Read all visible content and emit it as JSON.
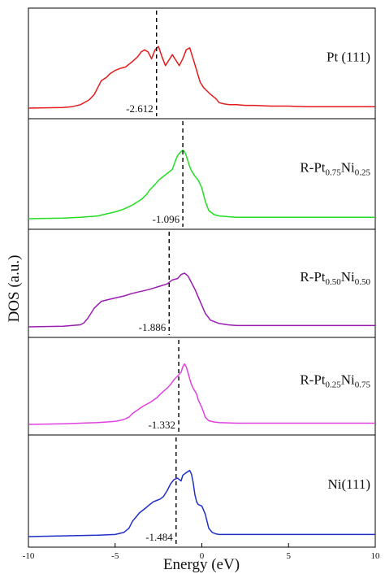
{
  "chart_data": {
    "type": "line",
    "xlabel": "Energy (eV)",
    "ylabel": "DOS (a.u.)",
    "xlim": [
      -10,
      10
    ],
    "x_ticks": [
      "-10",
      "-5",
      "0",
      "5",
      "10"
    ],
    "grid": false,
    "legend": "none",
    "panels": [
      {
        "label_main": "Pt (111)",
        "label_parts": [
          {
            "t": "Pt (111)",
            "sub": false
          }
        ],
        "color": "#e41a1c",
        "d_band_center": -2.612,
        "d_band_label": "-2.612",
        "x": [
          -10,
          -8,
          -7.5,
          -7,
          -6.5,
          -6.2,
          -6.0,
          -5.8,
          -5.5,
          -5.3,
          -5.0,
          -4.7,
          -4.4,
          -4.0,
          -3.7,
          -3.5,
          -3.3,
          -3.1,
          -2.9,
          -2.7,
          -2.5,
          -2.3,
          -2.1,
          -1.9,
          -1.7,
          -1.5,
          -1.3,
          -1.1,
          -0.9,
          -0.7,
          -0.5,
          -0.3,
          -0.1,
          0.1,
          0.3,
          0.5,
          0.8,
          1.0,
          1.3,
          1.6,
          2.0,
          2.5,
          3.0,
          4.0,
          5.0,
          6.0,
          7.0,
          8.0,
          9.0,
          10.0
        ],
        "y": [
          0,
          0.01,
          0.02,
          0.05,
          0.12,
          0.2,
          0.3,
          0.4,
          0.45,
          0.5,
          0.55,
          0.58,
          0.6,
          0.68,
          0.75,
          0.82,
          0.85,
          0.82,
          0.72,
          0.85,
          0.9,
          0.75,
          0.62,
          0.7,
          0.78,
          0.7,
          0.62,
          0.72,
          0.85,
          0.88,
          0.72,
          0.55,
          0.38,
          0.3,
          0.25,
          0.2,
          0.14,
          0.08,
          0.06,
          0.05,
          0.05,
          0.04,
          0.04,
          0.03,
          0.03,
          0.02,
          0.02,
          0.02,
          0.02,
          0.02
        ]
      },
      {
        "label_main": "R-Pt0.75Ni0.25",
        "label_parts": [
          {
            "t": "R-Pt",
            "sub": false
          },
          {
            "t": "0.75",
            "sub": true
          },
          {
            "t": "Ni",
            "sub": false
          },
          {
            "t": "0.25",
            "sub": true
          }
        ],
        "color": "#22dd22",
        "d_band_center": -1.096,
        "d_band_label": "-1.096",
        "x": [
          -10,
          -8,
          -7,
          -6,
          -5.5,
          -5,
          -4.5,
          -4,
          -3.5,
          -3.2,
          -3.0,
          -2.7,
          -2.5,
          -2.3,
          -2.1,
          -1.9,
          -1.7,
          -1.5,
          -1.4,
          -1.3,
          -1.2,
          -1.1,
          -1.0,
          -0.9,
          -0.8,
          -0.7,
          -0.6,
          -0.5,
          -0.4,
          -0.2,
          0,
          0.2,
          0.4,
          0.7,
          1.0,
          1.5,
          2.0,
          3,
          4,
          5,
          6,
          7,
          8,
          9,
          10
        ],
        "y": [
          0,
          0.01,
          0.02,
          0.04,
          0.07,
          0.1,
          0.14,
          0.2,
          0.28,
          0.35,
          0.42,
          0.5,
          0.56,
          0.6,
          0.64,
          0.68,
          0.72,
          0.86,
          0.92,
          0.95,
          0.98,
          1.0,
          0.98,
          0.92,
          0.84,
          0.76,
          0.7,
          0.66,
          0.62,
          0.56,
          0.45,
          0.25,
          0.12,
          0.06,
          0.04,
          0.03,
          0.02,
          0.02,
          0.02,
          0.02,
          0.02,
          0.02,
          0.02,
          0.02,
          0.02
        ]
      },
      {
        "label_main": "R-Pt0.50Ni0.50",
        "label_parts": [
          {
            "t": "R-Pt",
            "sub": false
          },
          {
            "t": "0.50",
            "sub": true
          },
          {
            "t": "Ni",
            "sub": false
          },
          {
            "t": "0.50",
            "sub": true
          }
        ],
        "color": "#9b1bb4",
        "d_band_center": -1.886,
        "d_band_label": "-1.886",
        "x": [
          -10,
          -8,
          -7,
          -6.8,
          -6.6,
          -6.4,
          -6.2,
          -6.0,
          -5.8,
          -5.5,
          -5.0,
          -4.5,
          -4.0,
          -3.5,
          -3.0,
          -2.5,
          -2.0,
          -1.7,
          -1.4,
          -1.2,
          -1.0,
          -0.8,
          -0.6,
          -0.4,
          -0.2,
          0,
          0.2,
          0.5,
          1.0,
          1.5,
          2.0,
          3,
          4,
          5,
          6,
          7,
          8,
          9,
          10
        ],
        "y": [
          0,
          0.01,
          0.03,
          0.06,
          0.12,
          0.2,
          0.28,
          0.33,
          0.38,
          0.4,
          0.43,
          0.46,
          0.5,
          0.53,
          0.56,
          0.6,
          0.64,
          0.7,
          0.72,
          0.78,
          0.8,
          0.76,
          0.66,
          0.56,
          0.44,
          0.32,
          0.2,
          0.1,
          0.05,
          0.03,
          0.02,
          0.02,
          0.02,
          0.02,
          0.02,
          0.02,
          0.02,
          0.02,
          0.02
        ]
      },
      {
        "label_main": "R-Pt0.25Ni0.75",
        "label_parts": [
          {
            "t": "R-Pt",
            "sub": false
          },
          {
            "t": "0.25",
            "sub": true
          },
          {
            "t": "Ni",
            "sub": false
          },
          {
            "t": "0.75",
            "sub": true
          }
        ],
        "color": "#e040e0",
        "d_band_center": -1.332,
        "d_band_label": "-1.332",
        "x": [
          -10,
          -8,
          -7,
          -6,
          -5,
          -4.5,
          -4.2,
          -4.0,
          -3.8,
          -3.6,
          -3.4,
          -3.2,
          -3.0,
          -2.8,
          -2.6,
          -2.4,
          -2.2,
          -2.0,
          -1.8,
          -1.6,
          -1.4,
          -1.2,
          -1.1,
          -1.0,
          -0.9,
          -0.8,
          -0.7,
          -0.6,
          -0.5,
          -0.4,
          -0.3,
          -0.2,
          0,
          0.2,
          0.4,
          0.7,
          1.0,
          2,
          3,
          4,
          5,
          6,
          7,
          8,
          9,
          10
        ],
        "y": [
          0,
          0.01,
          0.02,
          0.03,
          0.05,
          0.08,
          0.12,
          0.18,
          0.22,
          0.26,
          0.3,
          0.33,
          0.36,
          0.4,
          0.44,
          0.5,
          0.55,
          0.6,
          0.66,
          0.74,
          0.8,
          0.86,
          0.95,
          1.0,
          0.95,
          0.86,
          0.75,
          0.66,
          0.6,
          0.55,
          0.5,
          0.4,
          0.28,
          0.12,
          0.06,
          0.04,
          0.03,
          0.02,
          0.02,
          0.02,
          0.02,
          0.02,
          0.02,
          0.02,
          0.02,
          0.02
        ]
      },
      {
        "label_main": "Ni(111)",
        "label_parts": [
          {
            "t": "Ni(111)",
            "sub": false
          }
        ],
        "color": "#1f2fc8",
        "d_band_center": -1.484,
        "d_band_label": "-1.484",
        "x": [
          -10,
          -8,
          -6,
          -5,
          -4.5,
          -4.2,
          -4.0,
          -3.8,
          -3.6,
          -3.4,
          -3.2,
          -3.0,
          -2.8,
          -2.6,
          -2.4,
          -2.2,
          -2.0,
          -1.8,
          -1.6,
          -1.4,
          -1.2,
          -1.1,
          -0.9,
          -0.7,
          -0.6,
          -0.5,
          -0.4,
          -0.3,
          -0.2,
          0,
          0.2,
          0.4,
          0.6,
          0.8,
          1.0,
          1.5,
          2,
          3,
          4,
          5,
          6,
          7,
          8,
          9,
          10
        ],
        "y": [
          0,
          0.01,
          0.02,
          0.03,
          0.06,
          0.12,
          0.22,
          0.28,
          0.34,
          0.38,
          0.42,
          0.46,
          0.5,
          0.52,
          0.54,
          0.58,
          0.66,
          0.76,
          0.82,
          0.84,
          0.8,
          0.88,
          0.92,
          0.95,
          0.9,
          0.78,
          0.6,
          0.5,
          0.46,
          0.44,
          0.32,
          0.12,
          0.06,
          0.04,
          0.03,
          0.03,
          0.03,
          0.03,
          0.03,
          0.03,
          0.03,
          0.03,
          0.03,
          0.03,
          0.03
        ]
      }
    ]
  }
}
